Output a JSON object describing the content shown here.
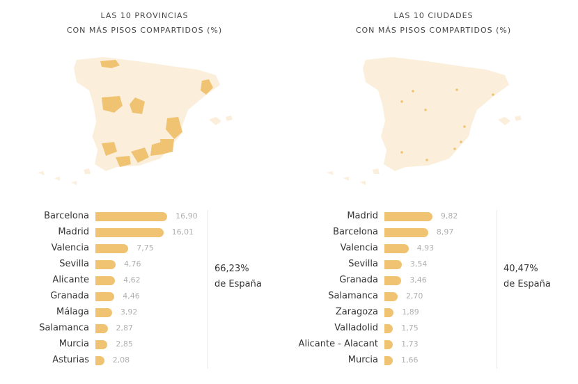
{
  "chart_data": [
    {
      "type": "bar",
      "title": "LAS 10 PROVINCIAS",
      "subtitle": "CON MÁS PISOS COMPARTIDOS (%)",
      "categories": [
        "Barcelona",
        "Madrid",
        "Valencia",
        "Sevilla",
        "Alicante",
        "Granada",
        "Málaga",
        "Salamanca",
        "Murcia",
        "Asturias"
      ],
      "values": [
        16.9,
        16.01,
        7.75,
        4.76,
        4.62,
        4.46,
        3.92,
        2.87,
        2.85,
        2.08
      ],
      "value_labels": [
        "16,90",
        "16,01",
        "7,75",
        "4,76",
        "4,62",
        "4,46",
        "3,92",
        "2,87",
        "2,85",
        "2,08"
      ],
      "summary_value": "66,23%",
      "summary_label": "de España",
      "bar_color": "#f0c373"
    },
    {
      "type": "bar",
      "title": "LAS 10 CIUDADES",
      "subtitle": "CON MÁS PISOS COMPARTIDOS (%)",
      "categories": [
        "Madrid",
        "Barcelona",
        "Valencia",
        "Sevilla",
        "Granada",
        "Salamanca",
        "Zaragoza",
        "Valladolid",
        "Alicante - Alacant",
        "Murcia"
      ],
      "values": [
        9.82,
        8.97,
        4.93,
        3.54,
        3.46,
        2.7,
        1.89,
        1.75,
        1.73,
        1.66
      ],
      "value_labels": [
        "9,82",
        "8,97",
        "4,93",
        "3,54",
        "3,46",
        "2,70",
        "1,89",
        "1,75",
        "1,73",
        "1,66"
      ],
      "summary_value": "40,47%",
      "summary_label": "de España",
      "bar_color": "#f0c373"
    }
  ],
  "colors": {
    "map_base": "#fbefdc",
    "map_highlight": "#f0c373",
    "city_dot": "#f0c373"
  }
}
